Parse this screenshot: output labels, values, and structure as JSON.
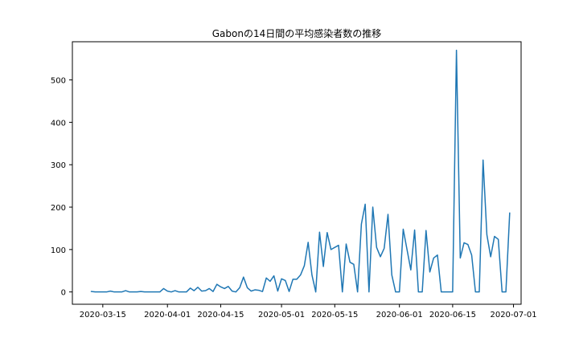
{
  "chart_data": {
    "type": "line",
    "title": "Gabonの14日間の平均感染者数の推移",
    "xlabel": "",
    "ylabel": "",
    "x_ticks": [
      "2020-03-15",
      "2020-04-01",
      "2020-04-15",
      "2020-05-01",
      "2020-05-15",
      "2020-06-01",
      "2020-06-15",
      "2020-07-01"
    ],
    "y_ticks": [
      "0",
      "100",
      "200",
      "300",
      "400",
      "500"
    ],
    "xlim": [
      "2020-03-07",
      "2020-07-03"
    ],
    "ylim": [
      -29,
      590
    ],
    "grid": false,
    "color": "#1f77b4",
    "series": [
      {
        "x": [
          "2020-03-12",
          "2020-03-13",
          "2020-03-14",
          "2020-03-15",
          "2020-03-16",
          "2020-03-17",
          "2020-03-18",
          "2020-03-19",
          "2020-03-20",
          "2020-03-21",
          "2020-03-22",
          "2020-03-23",
          "2020-03-24",
          "2020-03-25",
          "2020-03-26",
          "2020-03-27",
          "2020-03-28",
          "2020-03-29",
          "2020-03-30",
          "2020-03-31",
          "2020-04-01",
          "2020-04-02",
          "2020-04-03",
          "2020-04-04",
          "2020-04-05",
          "2020-04-06",
          "2020-04-07",
          "2020-04-08",
          "2020-04-09",
          "2020-04-10",
          "2020-04-11",
          "2020-04-12",
          "2020-04-13",
          "2020-04-14",
          "2020-04-15",
          "2020-04-16",
          "2020-04-17",
          "2020-04-18",
          "2020-04-19",
          "2020-04-20",
          "2020-04-21",
          "2020-04-22",
          "2020-04-23",
          "2020-04-24",
          "2020-04-25",
          "2020-04-26",
          "2020-04-27",
          "2020-04-28",
          "2020-04-29",
          "2020-04-30",
          "2020-05-01",
          "2020-05-02",
          "2020-05-03",
          "2020-05-04",
          "2020-05-05",
          "2020-05-06",
          "2020-05-07",
          "2020-05-08",
          "2020-05-09",
          "2020-05-10",
          "2020-05-11",
          "2020-05-12",
          "2020-05-13",
          "2020-05-14",
          "2020-05-15",
          "2020-05-16",
          "2020-05-17",
          "2020-05-18",
          "2020-05-19",
          "2020-05-20",
          "2020-05-21",
          "2020-05-22",
          "2020-05-23",
          "2020-05-24",
          "2020-05-25",
          "2020-05-26",
          "2020-05-27",
          "2020-05-28",
          "2020-05-29",
          "2020-05-30",
          "2020-05-31",
          "2020-06-01",
          "2020-06-02",
          "2020-06-03",
          "2020-06-04",
          "2020-06-05",
          "2020-06-06",
          "2020-06-07",
          "2020-06-08",
          "2020-06-09",
          "2020-06-10",
          "2020-06-11",
          "2020-06-12",
          "2020-06-13",
          "2020-06-14",
          "2020-06-15",
          "2020-06-16",
          "2020-06-17",
          "2020-06-18",
          "2020-06-19",
          "2020-06-20",
          "2020-06-21",
          "2020-06-22",
          "2020-06-23",
          "2020-06-24",
          "2020-06-25",
          "2020-06-26",
          "2020-06-27",
          "2020-06-28",
          "2020-06-29",
          "2020-06-30"
        ],
        "y": [
          1,
          0,
          0,
          0,
          0,
          2,
          0,
          0,
          0,
          3,
          0,
          0,
          0,
          1,
          0,
          0,
          0,
          0,
          0,
          8,
          2,
          0,
          3,
          0,
          0,
          0,
          9,
          3,
          11,
          2,
          3,
          8,
          1,
          18,
          12,
          8,
          13,
          2,
          0,
          10,
          35,
          10,
          2,
          5,
          4,
          1,
          33,
          25,
          38,
          2,
          31,
          27,
          1,
          30,
          30,
          40,
          62,
          117,
          40,
          0,
          141,
          60,
          140,
          100,
          105,
          110,
          0,
          113,
          70,
          65,
          0,
          160,
          207,
          0,
          200,
          105,
          83,
          103,
          183,
          40,
          0,
          0,
          148,
          100,
          52,
          146,
          0,
          0,
          145,
          47,
          80,
          87,
          0,
          0,
          0,
          0,
          570,
          80,
          116,
          112,
          87,
          0,
          0,
          311,
          135,
          83,
          131,
          124,
          0,
          0,
          186
        ]
      }
    ]
  }
}
